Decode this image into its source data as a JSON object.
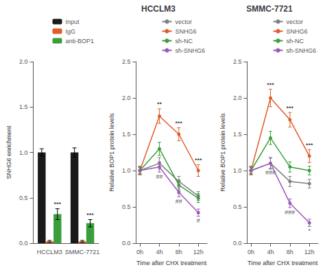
{
  "chart_data": [
    {
      "type": "bar",
      "categories": [
        "HCCLM3",
        "SMMC-7721"
      ],
      "ylabel": "SNHG6 enrichment",
      "ylim": [
        0,
        2.0
      ],
      "yticks": [
        {
          "value": 0.0,
          "label": "0.0"
        },
        0.5,
        {
          "value": 1.0,
          "label": "1.0"
        },
        1.5,
        {
          "value": 2.0,
          "label": "2.0"
        }
      ],
      "grid": false,
      "legend": "upper right",
      "series": [
        {
          "name": "Input",
          "color": "#1a1a1a",
          "values": [
            1.0,
            1.0
          ],
          "errors": [
            0.04,
            0.05
          ]
        },
        {
          "name": "IgG",
          "color": "#e05c2a",
          "values": [
            0.02,
            0.02
          ],
          "errors": [
            0.01,
            0.01
          ]
        },
        {
          "name": "anti-BOP1",
          "color": "#3a9e3a",
          "values": [
            0.32,
            0.22
          ],
          "errors": [
            0.06,
            0.04
          ],
          "annotations": [
            "***",
            "***"
          ]
        }
      ]
    },
    {
      "type": "line",
      "title": "HCCLM3",
      "x": [
        0,
        4,
        8,
        12
      ],
      "xlabel": "Time after CHX treatment",
      "ylabel": "Relative BOP1 protein levels",
      "xlim": [
        -0.8,
        13.8
      ],
      "xticks": [
        {
          "value": 0,
          "label": "0h"
        },
        {
          "value": 4,
          "label": "4h"
        },
        {
          "value": 8,
          "label": "8h"
        },
        {
          "value": 12,
          "label": "12h"
        }
      ],
      "ylim": [
        0,
        2.5
      ],
      "yticks": [
        {
          "value": 0.0,
          "label": "0.0"
        },
        0.5,
        {
          "value": 1.0,
          "label": "1.0"
        },
        1.5,
        {
          "value": 2.0,
          "label": "2.0"
        },
        2.5
      ],
      "grid": false,
      "legend": "upper right",
      "marker": "circle",
      "series": [
        {
          "name": "vector",
          "color": "#7f7f7f",
          "values": [
            1.0,
            1.1,
            0.85,
            0.65
          ],
          "errors": [
            0.05,
            0.08,
            0.07,
            0.06
          ]
        },
        {
          "name": "SNHG6",
          "color": "#e05c2a",
          "values": [
            1.0,
            1.75,
            1.5,
            1.0
          ],
          "errors": [
            0.06,
            0.1,
            0.09,
            0.08
          ],
          "annotations": [
            null,
            "**",
            "***",
            "***"
          ]
        },
        {
          "name": "sh-NC",
          "color": "#3a9e3a",
          "values": [
            1.0,
            1.3,
            0.8,
            0.62
          ],
          "errors": [
            0.05,
            0.09,
            0.07,
            0.06
          ]
        },
        {
          "name": "sh-SNHG6",
          "color": "#9b59b6",
          "values": [
            1.0,
            1.05,
            0.7,
            0.42
          ],
          "errors": [
            0.04,
            0.07,
            0.06,
            0.05
          ],
          "annotations": [
            null,
            "##",
            "##",
            "#"
          ]
        }
      ]
    },
    {
      "type": "line",
      "title": "SMMC-7721",
      "x": [
        0,
        4,
        8,
        12
      ],
      "xlabel": "Time after CHX treatment",
      "ylabel": "Relative BOP1 protein levels",
      "xlim": [
        -0.8,
        13.8
      ],
      "xticks": [
        {
          "value": 0,
          "label": "0h"
        },
        {
          "value": 4,
          "label": "4h"
        },
        {
          "value": 8,
          "label": "8h"
        },
        {
          "value": 12,
          "label": "12h"
        }
      ],
      "ylim": [
        0,
        2.5
      ],
      "yticks": [
        {
          "value": 0.0,
          "label": "0.0"
        },
        0.5,
        {
          "value": 1.0,
          "label": "1.0"
        },
        1.5,
        {
          "value": 2.0,
          "label": "2.0"
        },
        2.5
      ],
      "grid": false,
      "legend": "upper right",
      "marker": "circle",
      "series": [
        {
          "name": "vector",
          "color": "#7f7f7f",
          "values": [
            1.0,
            1.1,
            0.85,
            0.82
          ],
          "errors": [
            0.05,
            0.08,
            0.07,
            0.06
          ]
        },
        {
          "name": "SNHG6",
          "color": "#e05c2a",
          "values": [
            1.0,
            2.0,
            1.7,
            1.2
          ],
          "errors": [
            0.06,
            0.12,
            0.1,
            0.09
          ],
          "annotations": [
            null,
            "***",
            "***",
            "***"
          ]
        },
        {
          "name": "sh-NC",
          "color": "#3a9e3a",
          "values": [
            1.0,
            1.45,
            1.05,
            1.0
          ],
          "errors": [
            0.05,
            0.09,
            0.07,
            0.06
          ]
        },
        {
          "name": "sh-SNHG6",
          "color": "#9b59b6",
          "values": [
            1.0,
            1.1,
            0.55,
            0.28
          ],
          "errors": [
            0.04,
            0.07,
            0.06,
            0.05
          ],
          "annotations": [
            null,
            "###",
            "###",
            "*"
          ]
        }
      ]
    }
  ]
}
